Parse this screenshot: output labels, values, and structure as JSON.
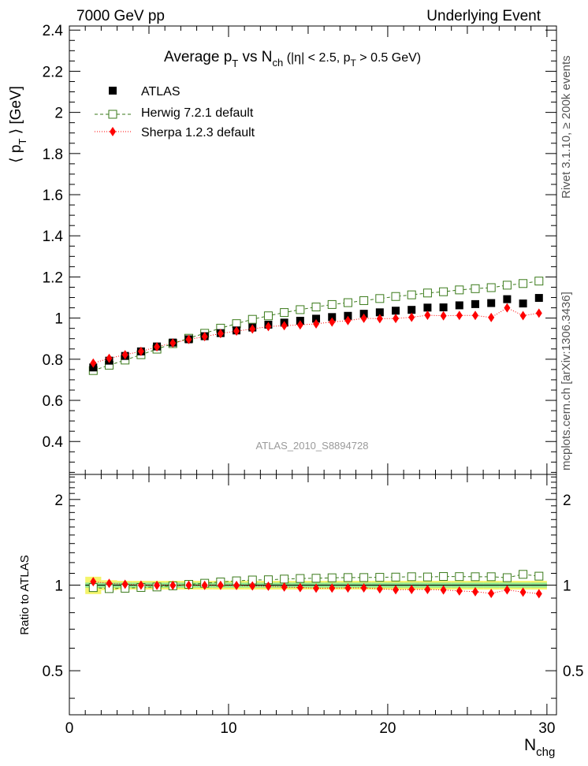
{
  "header": {
    "left": "7000 GeV pp",
    "right": "Underlying Event"
  },
  "side": {
    "rivet": "Rivet 3.1.10, ≥ 200k events",
    "mcplots": "mcplots.cern.ch [arXiv:1306.3436]"
  },
  "analysis_id": "ATLAS_2010_S8894728",
  "colors": {
    "atlas": "#000000",
    "herwig": "#3a7a1a",
    "sherpa": "#ff0000",
    "band_inner": "#8ee68e",
    "band_outer": "#f4f46a"
  },
  "chart_data": [
    {
      "type": "scatter",
      "title": "Average p_T vs N_ch (|η| < 2.5, p_T > 0.5 GeV)",
      "title_parts": {
        "a": "Average p",
        "a_sub": "T",
        "b": " vs N",
        "b_sub": "ch",
        "c": " (|η| < 2.5, p",
        "c_sub": "T",
        "d": " > 0.5 GeV)"
      },
      "xlabel": "N",
      "xlabel_sub": "chg",
      "ylabel": "⟨ p_T ⟩ [GeV]",
      "ylabel_parts": {
        "a": "⟨ p",
        "sub": "T",
        "b": " ⟩ [GeV]"
      },
      "xlim": [
        0,
        30.6
      ],
      "ylim": [
        0.24,
        2.42
      ],
      "xticks": [
        0,
        10,
        20,
        30
      ],
      "yticks": [
        0.4,
        0.6,
        0.8,
        1,
        1.2,
        1.4,
        1.6,
        1.8,
        2,
        2.2,
        2.4
      ],
      "ytick_labels": [
        "0.4",
        "0.6",
        "0.8",
        "1",
        "1.2",
        "1.4",
        "1.6",
        "1.8",
        "2",
        "2.2",
        "2.4"
      ],
      "x": [
        1.5,
        2.5,
        3.5,
        4.5,
        5.5,
        6.5,
        7.5,
        8.5,
        9.5,
        10.5,
        11.5,
        12.5,
        13.5,
        14.5,
        15.5,
        16.5,
        17.5,
        18.5,
        19.5,
        20.5,
        21.5,
        22.5,
        23.5,
        24.5,
        25.5,
        26.5,
        27.5,
        28.5,
        29.5
      ],
      "series": [
        {
          "name": "ATLAS",
          "style": "data",
          "values": [
            0.76,
            0.793,
            0.816,
            0.838,
            0.862,
            0.881,
            0.897,
            0.912,
            0.927,
            0.94,
            0.954,
            0.968,
            0.978,
            0.987,
            0.997,
            1.005,
            1.011,
            1.021,
            1.028,
            1.036,
            1.04,
            1.051,
            1.052,
            1.062,
            1.068,
            1.073,
            1.092,
            1.071,
            1.098
          ]
        },
        {
          "name": "Herwig 7.2.1 default",
          "style": "open-square-dashed",
          "values": [
            0.745,
            0.771,
            0.796,
            0.822,
            0.849,
            0.876,
            0.902,
            0.926,
            0.951,
            0.973,
            0.994,
            1.011,
            1.027,
            1.041,
            1.054,
            1.066,
            1.075,
            1.085,
            1.095,
            1.105,
            1.113,
            1.122,
            1.128,
            1.137,
            1.143,
            1.148,
            1.16,
            1.168,
            1.18
          ]
        },
        {
          "name": "Sherpa 1.2.3 default",
          "style": "diamond-dotted",
          "values": [
            0.781,
            0.804,
            0.822,
            0.838,
            0.86,
            0.879,
            0.896,
            0.91,
            0.925,
            0.937,
            0.947,
            0.959,
            0.963,
            0.967,
            0.972,
            0.981,
            0.988,
            0.999,
            0.997,
            0.998,
            1.004,
            1.014,
            1.011,
            1.013,
            1.013,
            1.003,
            1.05,
            1.012,
            1.024
          ]
        }
      ]
    },
    {
      "type": "scatter",
      "ylabel": "Ratio to ATLAS",
      "xlim": [
        0,
        30.6
      ],
      "ylim": [
        0.35,
        2.45
      ],
      "yscale": "log",
      "yticks": [
        0.5,
        1,
        2
      ],
      "ytick_labels": [
        "0.5",
        "1",
        "2"
      ],
      "x": [
        1.5,
        2.5,
        3.5,
        4.5,
        5.5,
        6.5,
        7.5,
        8.5,
        9.5,
        10.5,
        11.5,
        12.5,
        13.5,
        14.5,
        15.5,
        16.5,
        17.5,
        18.5,
        19.5,
        20.5,
        21.5,
        22.5,
        23.5,
        24.5,
        25.5,
        26.5,
        27.5,
        28.5,
        29.5
      ],
      "band": {
        "inner": [
          0.02,
          0.02,
          0.02,
          0.02,
          0.02,
          0.02,
          0.02,
          0.02,
          0.02,
          0.02,
          0.02,
          0.02,
          0.02,
          0.02,
          0.02,
          0.02,
          0.02,
          0.02,
          0.02,
          0.02,
          0.02,
          0.02,
          0.02,
          0.02,
          0.02,
          0.02,
          0.02,
          0.02,
          0.02
        ],
        "outer": [
          0.07,
          0.04,
          0.035,
          0.035,
          0.035,
          0.035,
          0.035,
          0.035,
          0.035,
          0.035,
          0.035,
          0.035,
          0.035,
          0.035,
          0.035,
          0.035,
          0.035,
          0.035,
          0.035,
          0.035,
          0.035,
          0.035,
          0.035,
          0.035,
          0.035,
          0.035,
          0.035,
          0.035,
          0.035
        ]
      },
      "series": [
        {
          "name": "Herwig 7.2.1 default",
          "style": "open-square-dashed",
          "values": [
            0.98,
            0.972,
            0.975,
            0.981,
            0.985,
            0.994,
            1.006,
            1.015,
            1.026,
            1.035,
            1.042,
            1.044,
            1.05,
            1.055,
            1.057,
            1.061,
            1.063,
            1.063,
            1.065,
            1.067,
            1.07,
            1.068,
            1.072,
            1.071,
            1.07,
            1.07,
            1.062,
            1.091,
            1.075
          ]
        },
        {
          "name": "Sherpa 1.2.3 default",
          "style": "diamond-dotted",
          "values": [
            1.028,
            1.014,
            1.007,
            1.0,
            0.998,
            0.998,
            0.999,
            0.998,
            0.998,
            0.997,
            0.993,
            0.991,
            0.985,
            0.98,
            0.975,
            0.976,
            0.977,
            0.978,
            0.97,
            0.963,
            0.965,
            0.965,
            0.961,
            0.954,
            0.948,
            0.935,
            0.962,
            0.945,
            0.933
          ]
        }
      ]
    }
  ]
}
